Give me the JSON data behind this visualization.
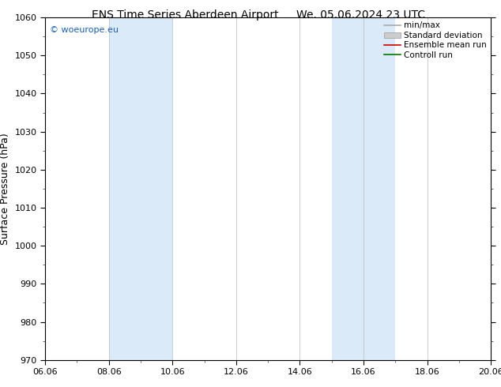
{
  "title_left": "ENS Time Series Aberdeen Airport",
  "title_right": "We. 05.06.2024 23 UTC",
  "ylabel": "Surface Pressure (hPa)",
  "ylim": [
    970,
    1060
  ],
  "yticks": [
    970,
    980,
    990,
    1000,
    1010,
    1020,
    1030,
    1040,
    1050,
    1060
  ],
  "xlim_num": [
    0.0,
    14.0
  ],
  "xtick_positions": [
    0,
    2,
    4,
    6,
    8,
    10,
    12,
    14
  ],
  "xtick_labels": [
    "06.06",
    "08.06",
    "10.06",
    "12.06",
    "14.06",
    "16.06",
    "18.06",
    "20.06"
  ],
  "shaded_bands": [
    {
      "xmin": 2.0,
      "xmax": 4.0
    },
    {
      "xmin": 9.0,
      "xmax": 11.0
    }
  ],
  "shade_color": "#daeaf8",
  "bg_color": "#ffffff",
  "plot_bg_color": "#ffffff",
  "watermark": "© woeurope.eu",
  "watermark_color": "#1a5fb4",
  "legend_entries": [
    {
      "label": "min/max",
      "color": "#aaaaaa",
      "linewidth": 1.2
    },
    {
      "label": "Standard deviation",
      "color": "#cccccc",
      "linewidth": 5
    },
    {
      "label": "Ensemble mean run",
      "color": "#cc0000",
      "linewidth": 1.2
    },
    {
      "label": "Controll run",
      "color": "#007700",
      "linewidth": 1.2
    }
  ],
  "grid_color": "#bbbbbb",
  "tick_color": "#000000",
  "title_fontsize": 10,
  "label_fontsize": 9,
  "tick_fontsize": 8,
  "legend_fontsize": 7.5
}
